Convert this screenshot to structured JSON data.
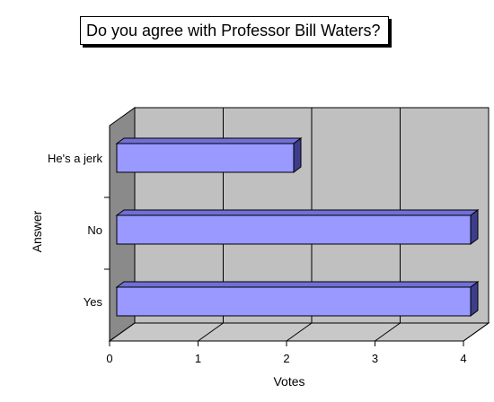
{
  "chart_data": {
    "type": "bar",
    "orientation": "horizontal",
    "style": "3d",
    "title": "Do you agree with Professor Bill Waters?",
    "xlabel": "Votes",
    "ylabel": "Answer",
    "categories": [
      "He's a jerk",
      "No",
      "Yes"
    ],
    "values": [
      2,
      4,
      4
    ],
    "xlim": [
      0,
      4
    ],
    "xticks": [
      "0",
      "1",
      "2",
      "3",
      "4"
    ],
    "grid": true,
    "legend": "none",
    "colors": {
      "bar_front": "#9999ff",
      "bar_top": "#6f6fd6",
      "bar_side": "#3d3d8c",
      "back_wall": "#c0c0c0",
      "side_wall": "#8a8a8a",
      "floor": "#c8c8c8"
    }
  }
}
